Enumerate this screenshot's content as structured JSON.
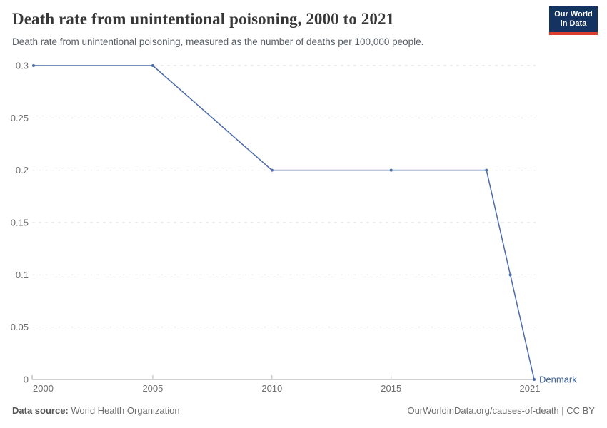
{
  "header": {
    "title": "Death rate from unintentional poisoning, 2000 to 2021",
    "subtitle": "Death rate from unintentional poisoning, measured as the number of deaths per 100,000 people.",
    "logo": {
      "line1": "Our World",
      "line2": "in Data",
      "bg_color": "#153360",
      "stripe_color": "#dc3e32"
    }
  },
  "chart_data": {
    "type": "line",
    "title": "Death rate from unintentional poisoning, 2000 to 2021",
    "xlabel": "",
    "ylabel": "deaths per 100,000 people",
    "xlim": [
      2000,
      2021
    ],
    "ylim": [
      0,
      0.3
    ],
    "y_ticks": [
      0,
      0.05,
      0.1,
      0.15,
      0.2,
      0.25,
      0.3
    ],
    "x_ticks": [
      2000,
      2005,
      2010,
      2015,
      2021
    ],
    "grid": "horizontal dashed",
    "legend_position": "end-of-line label",
    "series": [
      {
        "name": "Denmark",
        "color": "#4c6ba8",
        "x": [
          2000,
          2005,
          2010,
          2015,
          2019,
          2020,
          2021
        ],
        "values": [
          0.3,
          0.3,
          0.2,
          0.2,
          0.2,
          0.1,
          0
        ]
      }
    ]
  },
  "chart_colors": {
    "line": "#4c6ba8",
    "entity_label": "#3d649f",
    "gridline": "#dadada",
    "axis": "#a3a3a3",
    "tick_mark": "#b8b8b8",
    "tick_label": "#6e6e6e"
  },
  "footer": {
    "source_label": "Data source:",
    "source_value": " World Health Organization",
    "credit": "OurWorldinData.org/causes-of-death | CC BY"
  }
}
